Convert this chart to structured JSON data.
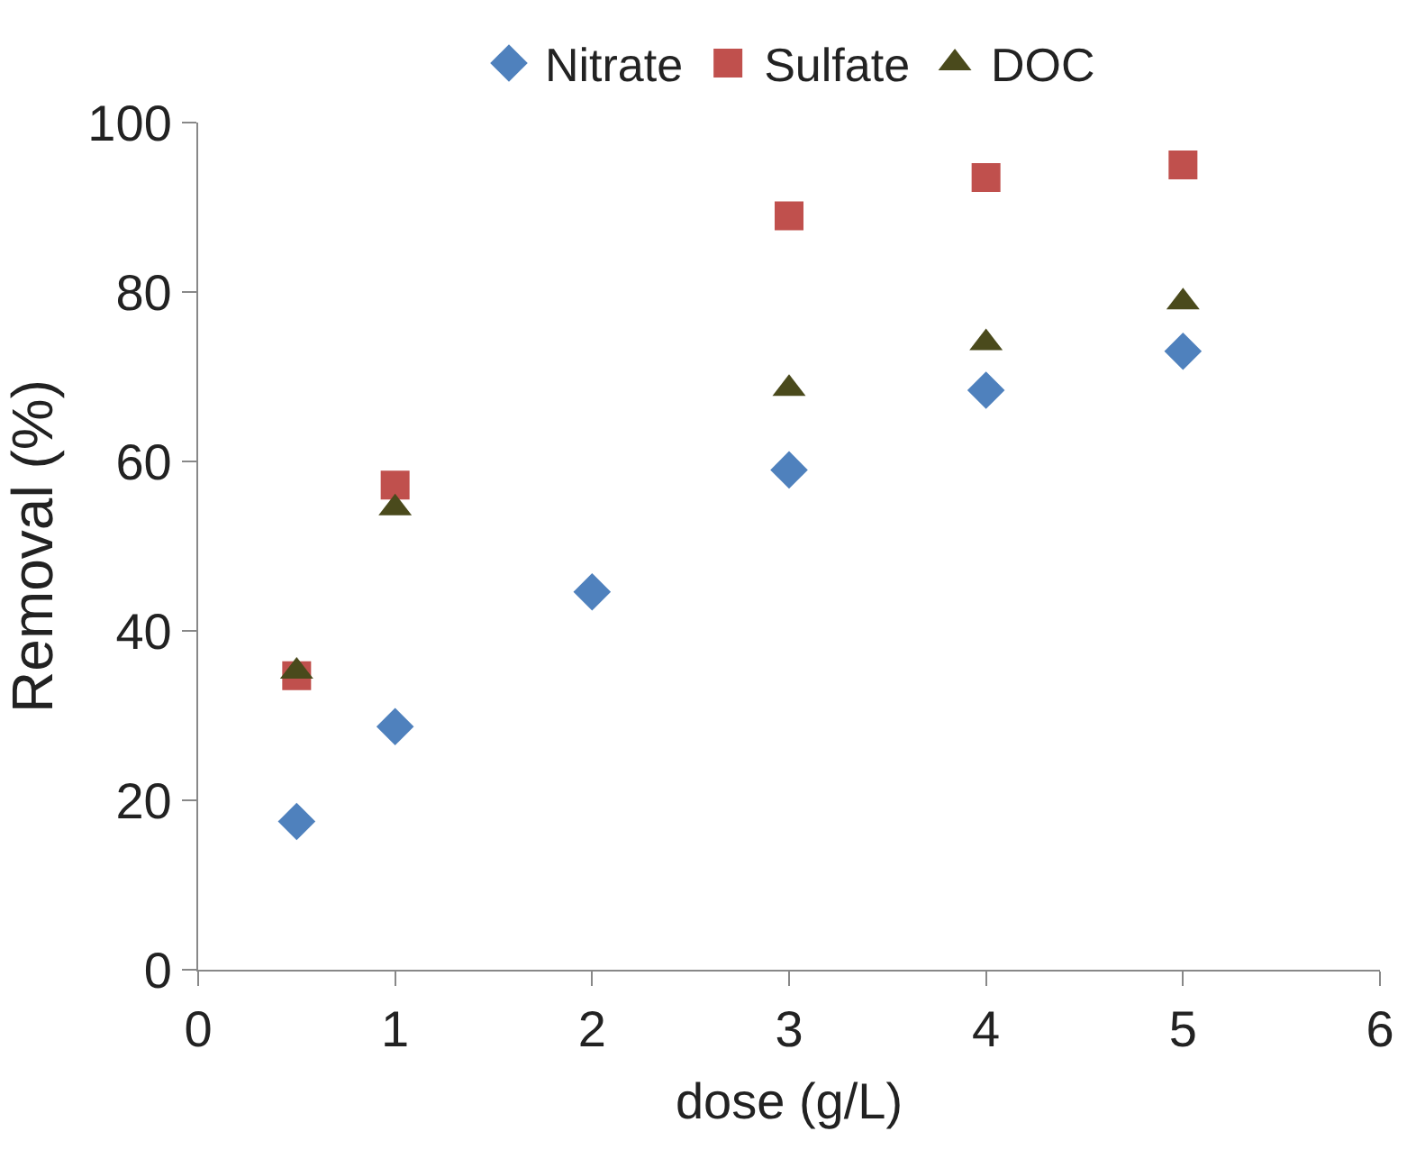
{
  "chart_data": {
    "type": "scatter",
    "xlabel": "dose (g/L)",
    "ylabel": "Removal (%)",
    "xlim": [
      0,
      6
    ],
    "xticks": [
      0,
      1,
      2,
      3,
      4,
      5,
      6
    ],
    "ylim": [
      0,
      100
    ],
    "yticks": [
      0,
      20,
      40,
      60,
      80,
      100
    ],
    "legend": "top",
    "series": [
      {
        "name": "Nitrate",
        "color": "#4f81bd",
        "marker": "diamond",
        "x": [
          0.5,
          1,
          2,
          3,
          4,
          5
        ],
        "values": [
          17.5,
          28.7,
          44.6,
          59,
          68.4,
          73
        ]
      },
      {
        "name": "Sulfate",
        "color": "#c0504d",
        "marker": "square",
        "x": [
          0.5,
          1,
          3,
          4,
          5
        ],
        "values": [
          34.7,
          57.2,
          89,
          93.5,
          95
        ]
      },
      {
        "name": "DOC",
        "color": "#4a4a1c",
        "marker": "triangle",
        "x": [
          0.5,
          1,
          3,
          4,
          5
        ],
        "values": [
          35.2,
          54.5,
          68.6,
          74,
          78.8
        ]
      }
    ]
  }
}
